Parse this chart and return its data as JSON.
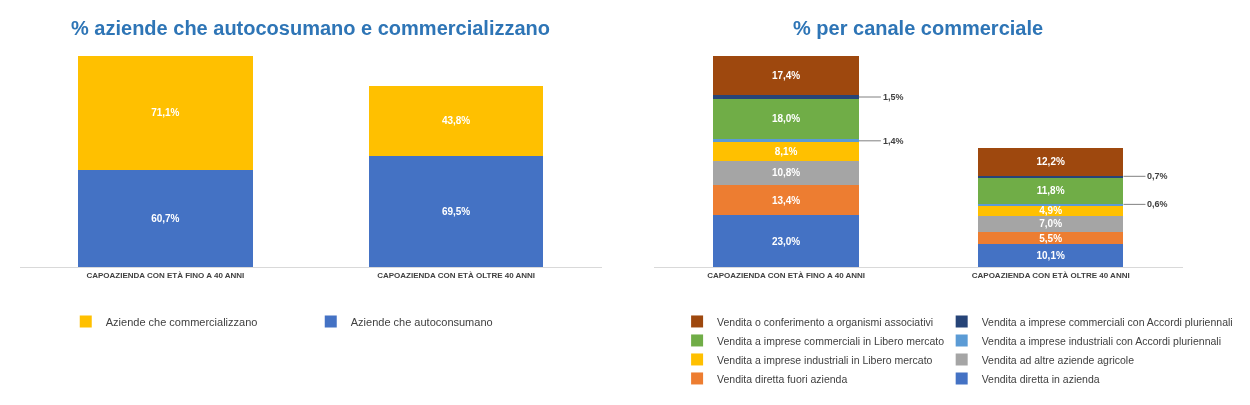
{
  "chart_data": [
    {
      "type": "bar",
      "title": "% aziende che autocosumano e commercializzano",
      "stacked": true,
      "tick_labels": "x",
      "grid": false,
      "legend": "bottom",
      "categories": [
        "CAPOAZIENDA CON ETÀ FINO A 40 ANNI",
        "CAPOAZIENDA CON ETÀ OLTRE 40 ANNI"
      ],
      "series": [
        {
          "name": "Aziende che autoconsumano",
          "color": "#4472c4",
          "values": [
            60.7,
            69.5
          ],
          "value_labels": [
            "60,7%",
            "69,5%"
          ]
        },
        {
          "name": "Aziende che commercializzano",
          "color": "#ffc000",
          "values": [
            71.1,
            43.8
          ],
          "value_labels": [
            "71,1%",
            "43,8%"
          ]
        }
      ]
    },
    {
      "type": "bar",
      "title": "% per canale commerciale",
      "stacked": true,
      "tick_labels": "x",
      "grid": false,
      "legend": "bottom",
      "categories": [
        "CAPOAZIENDA CON ETÀ FINO A 40 ANNI",
        "CAPOAZIENDA CON ETÀ OLTRE 40 ANNI"
      ],
      "series": [
        {
          "name": "Vendita diretta in azienda",
          "color": "#4472c4",
          "values": [
            23.0,
            10.1
          ],
          "value_labels": [
            "23,0%",
            "10,1%"
          ]
        },
        {
          "name": "Vendita diretta fuori azienda",
          "color": "#ed7d31",
          "values": [
            13.4,
            5.5
          ],
          "value_labels": [
            "13,4%",
            "5,5%"
          ]
        },
        {
          "name": "Vendita ad altre aziende agricole",
          "color": "#a5a5a5",
          "values": [
            10.8,
            7.0
          ],
          "value_labels": [
            "10,8%",
            "7,0%"
          ]
        },
        {
          "name": "Vendita a imprese industriali in Libero mercato",
          "color": "#ffc000",
          "values": [
            8.1,
            4.9
          ],
          "value_labels": [
            "8,1%",
            "4,9%"
          ]
        },
        {
          "name": "Vendita a imprese industriali con Accordi pluriennali",
          "color": "#5b9bd5",
          "values": [
            1.4,
            0.6
          ],
          "value_labels": [
            "1,4%",
            "0,6%"
          ]
        },
        {
          "name": "Vendita a imprese commerciali in Libero mercato",
          "color": "#70ad47",
          "values": [
            18.0,
            11.8
          ],
          "value_labels": [
            "18,0%",
            "11,8%"
          ]
        },
        {
          "name": "Vendita a imprese commerciali con Accordi pluriennali",
          "color": "#264478",
          "values": [
            1.5,
            0.7
          ],
          "value_labels": [
            "1,5%",
            "0,7%"
          ]
        },
        {
          "name": "Vendita o conferimento a organismi associativi",
          "color": "#9e480e",
          "values": [
            17.4,
            12.2
          ],
          "value_labels": [
            "17,4%",
            "12,2%"
          ]
        }
      ]
    }
  ]
}
